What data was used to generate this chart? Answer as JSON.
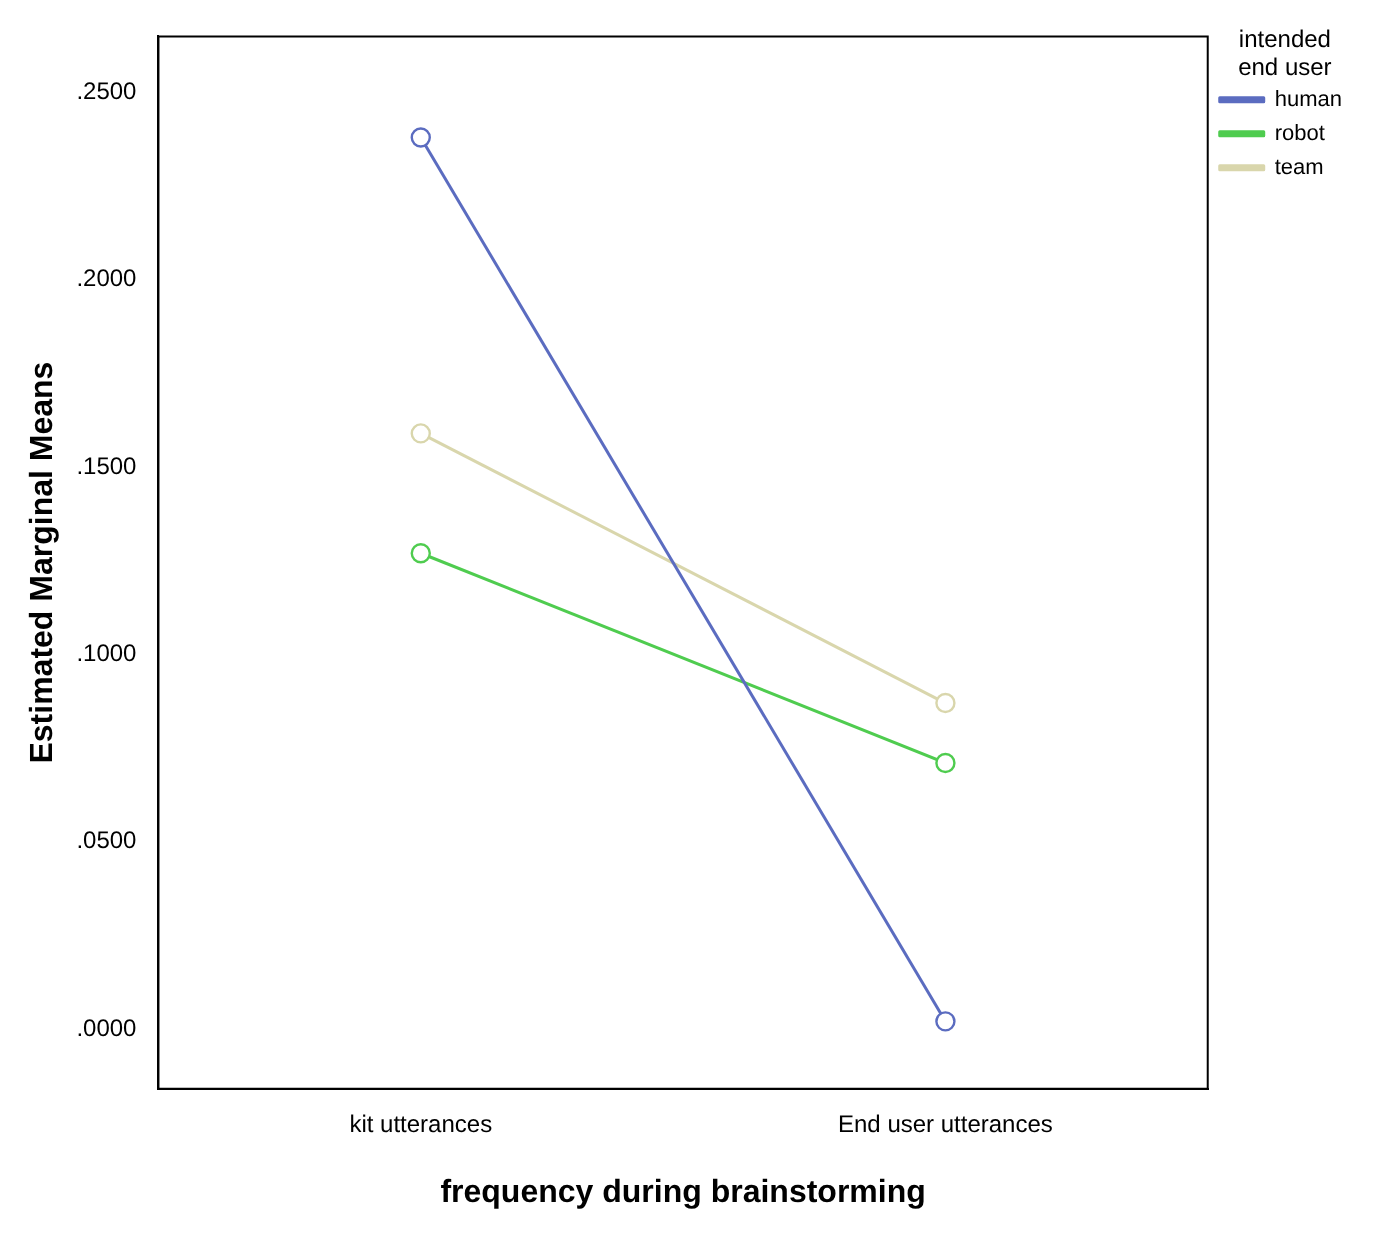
{
  "chart_data": {
    "type": "line",
    "xlabel": "frequency during brainstorming",
    "ylabel": "Estimated Marginal Means",
    "legend_title": "intended end user",
    "categories": [
      "kit utterances",
      "End user utterances"
    ],
    "series": [
      {
        "name": "human",
        "color": "#5b6cc0",
        "values": [
          0.238,
          0.002
        ]
      },
      {
        "name": "robot",
        "color": "#4fcc4f",
        "values": [
          0.127,
          0.071
        ]
      },
      {
        "name": "team",
        "color": "#d9d6ac",
        "values": [
          0.159,
          0.087
        ]
      }
    ],
    "ylim": [
      -0.016,
      0.265
    ],
    "yticks": [
      {
        "value": 0,
        "label": ".0000"
      },
      {
        "value": 0.05,
        "label": ".0500"
      },
      {
        "value": 0.1,
        "label": ".1000"
      },
      {
        "value": 0.15,
        "label": ".1500"
      },
      {
        "value": 0.2,
        "label": ".2000"
      },
      {
        "value": 0.25,
        "label": ".2500"
      }
    ],
    "grid": false,
    "legend": "right",
    "marker": "circle",
    "line_style": "solid"
  }
}
